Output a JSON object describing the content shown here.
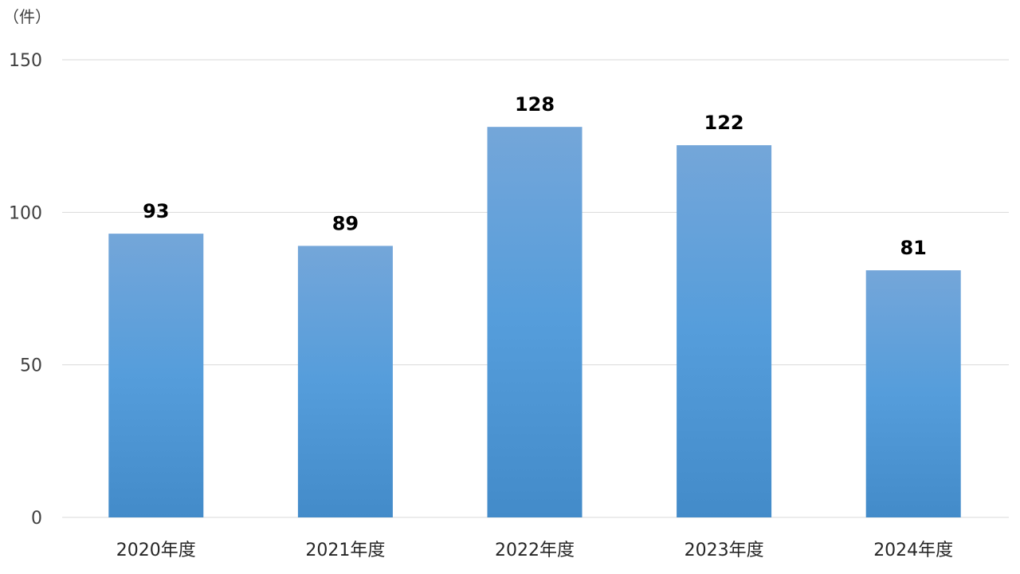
{
  "chart_data": {
    "type": "bar",
    "unit_label": "（件）",
    "categories": [
      "2020年度",
      "2021年度",
      "2022年度",
      "2023年度",
      "2024年度"
    ],
    "values": [
      93,
      89,
      128,
      122,
      81
    ],
    "data_labels": [
      "93",
      "89",
      "128",
      "122",
      "81"
    ],
    "ylim": [
      0,
      150
    ],
    "yticks": [
      0,
      50,
      100,
      150
    ],
    "ytick_labels": [
      "0",
      "50",
      "100",
      "150"
    ],
    "grid": true,
    "legend": "none",
    "colors": {
      "bar_top": "#74a6d9",
      "bar_mid": "#559ddb",
      "bar_bottom": "#438bc9",
      "gridline": "#d9d9d9"
    }
  }
}
